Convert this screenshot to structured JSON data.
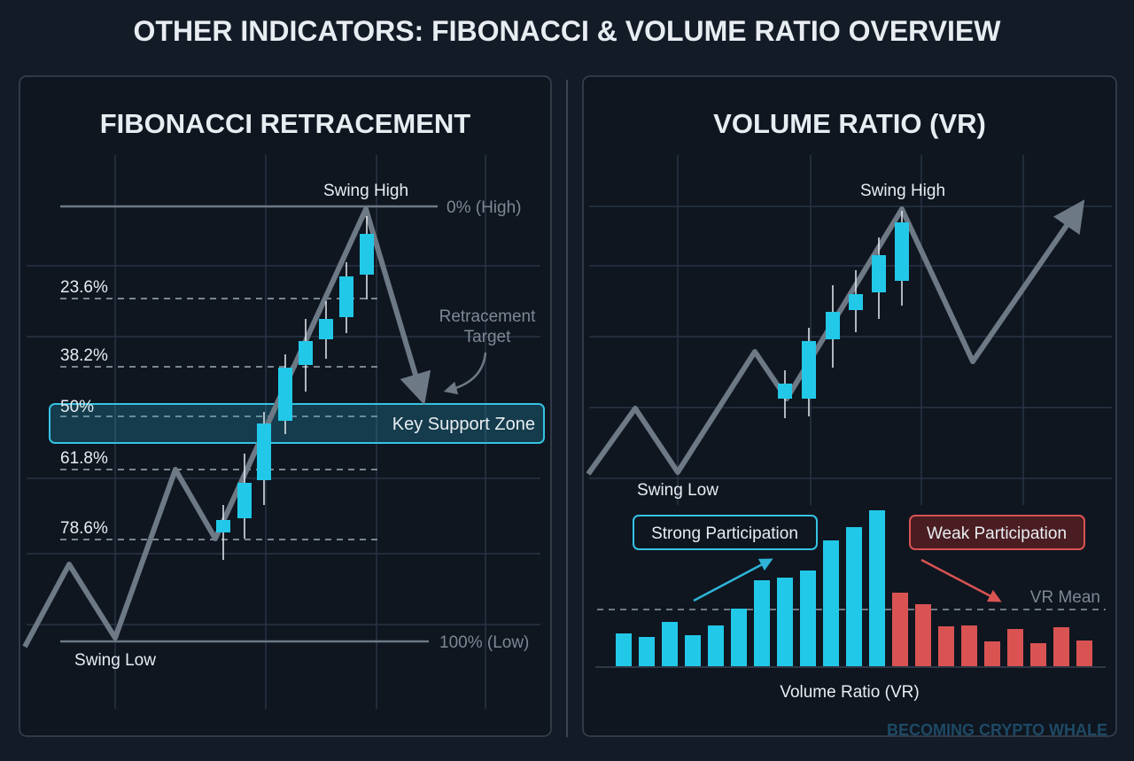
{
  "header": {
    "title": "OTHER INDICATORS: FIBONACCI & VOLUME RATIO OVERVIEW"
  },
  "left_panel": {
    "title": "FIBONACCI RETRACEMENT",
    "swing_high": "Swing High",
    "swing_low": "Swing Low",
    "high_label": "0% (High)",
    "low_label": "100% (Low)",
    "levels": [
      "23.6%",
      "38.2%",
      "50%",
      "61.8%",
      "78.6%"
    ],
    "target_label": [
      "Retracement",
      "Target"
    ],
    "zone_label": "Key Support Zone"
  },
  "right_panel": {
    "title": "VOLUME RATIO (VR)",
    "swing_high": "Swing High",
    "swing_low": "Swing Low",
    "strong_label": "Strong Participation",
    "weak_label": "Weak Participation",
    "mean_label": "VR Mean",
    "axis_label": "Volume Ratio (VR)"
  },
  "watermark": "BECOMING CRYPTO WHALE"
}
